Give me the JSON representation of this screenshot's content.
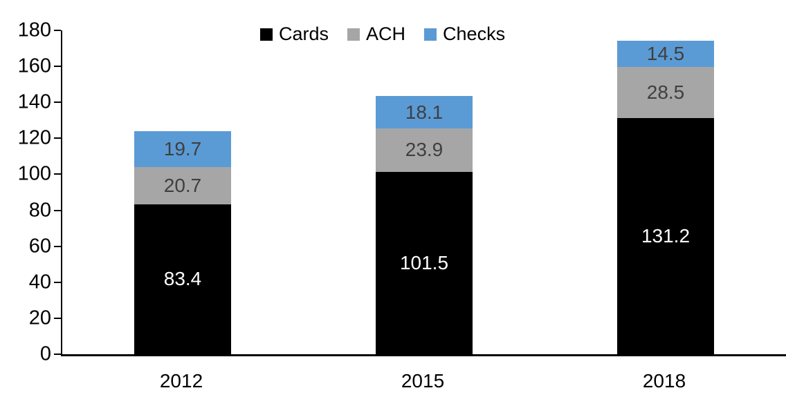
{
  "chart_data": {
    "type": "bar",
    "stacked": true,
    "title": "",
    "xlabel": "",
    "ylabel": "",
    "categories": [
      "2012",
      "2015",
      "2018"
    ],
    "series": [
      {
        "name": "Cards",
        "color": "#000000",
        "label_color": "#ffffff",
        "values": [
          83.4,
          101.5,
          131.2
        ]
      },
      {
        "name": "ACH",
        "color": "#a6a6a6",
        "label_color": "#3f3f3f",
        "values": [
          20.7,
          23.9,
          28.5
        ]
      },
      {
        "name": "Checks",
        "color": "#5b9bd5",
        "label_color": "#3f3f3f",
        "values": [
          19.7,
          18.1,
          14.5
        ]
      }
    ],
    "ylim": [
      0,
      180
    ],
    "yticks": [
      0,
      20,
      40,
      60,
      80,
      100,
      120,
      140,
      160,
      180
    ],
    "grid": false,
    "legend_position": "top",
    "axis_color": "#000000"
  }
}
